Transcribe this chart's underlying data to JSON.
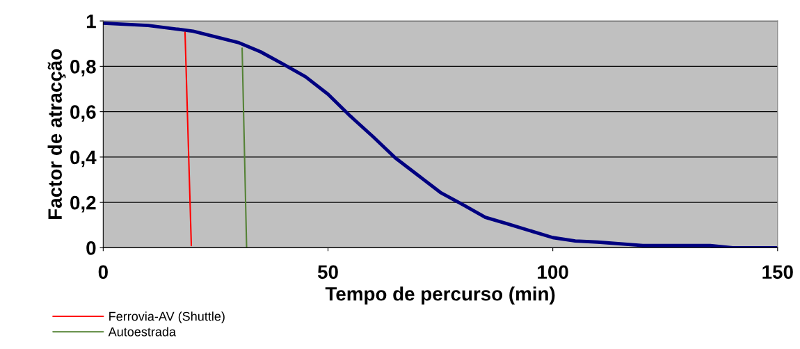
{
  "chart_data": {
    "type": "line",
    "xlabel": "Tempo de percurso (min)",
    "ylabel": "Factor de atracção",
    "series": [
      {
        "color": "#000080",
        "x": [
          0,
          10,
          20,
          30,
          35,
          40,
          45,
          50,
          55,
          60,
          65,
          70,
          75,
          80,
          85,
          90,
          100,
          105,
          110,
          120,
          135,
          140,
          150
        ],
        "values": [
          0.99,
          0.98,
          0.955,
          0.905,
          0.864,
          0.81,
          0.754,
          0.677,
          0.58,
          0.49,
          0.396,
          0.32,
          0.244,
          0.19,
          0.134,
          0.105,
          0.045,
          0.03,
          0.025,
          0.01,
          0.01,
          0.0,
          0.0
        ]
      },
      {
        "name": "Ferrovia-AV (Shuttle)",
        "color": "#ff0000",
        "x": [
          18.2,
          19.6
        ],
        "values": [
          0.95,
          0.01
        ]
      },
      {
        "name": "Autoestrada",
        "color": "#548235",
        "x": [
          30.9,
          31.9
        ],
        "values": [
          0.88,
          0.0
        ]
      }
    ],
    "xlim": [
      0,
      150
    ],
    "ylim": [
      0,
      1
    ],
    "xticks": [
      0,
      50,
      100,
      150
    ],
    "yticks": [
      {
        "value": 0,
        "label": "0"
      },
      {
        "value": 0.2,
        "label": "0,2"
      },
      {
        "value": 0.4,
        "label": "0,4"
      },
      {
        "value": 0.6,
        "label": "0,6"
      },
      {
        "value": 0.8,
        "label": "0,8"
      },
      {
        "value": 1,
        "label": "1"
      }
    ],
    "grid": "y",
    "legend": "bottom left"
  }
}
